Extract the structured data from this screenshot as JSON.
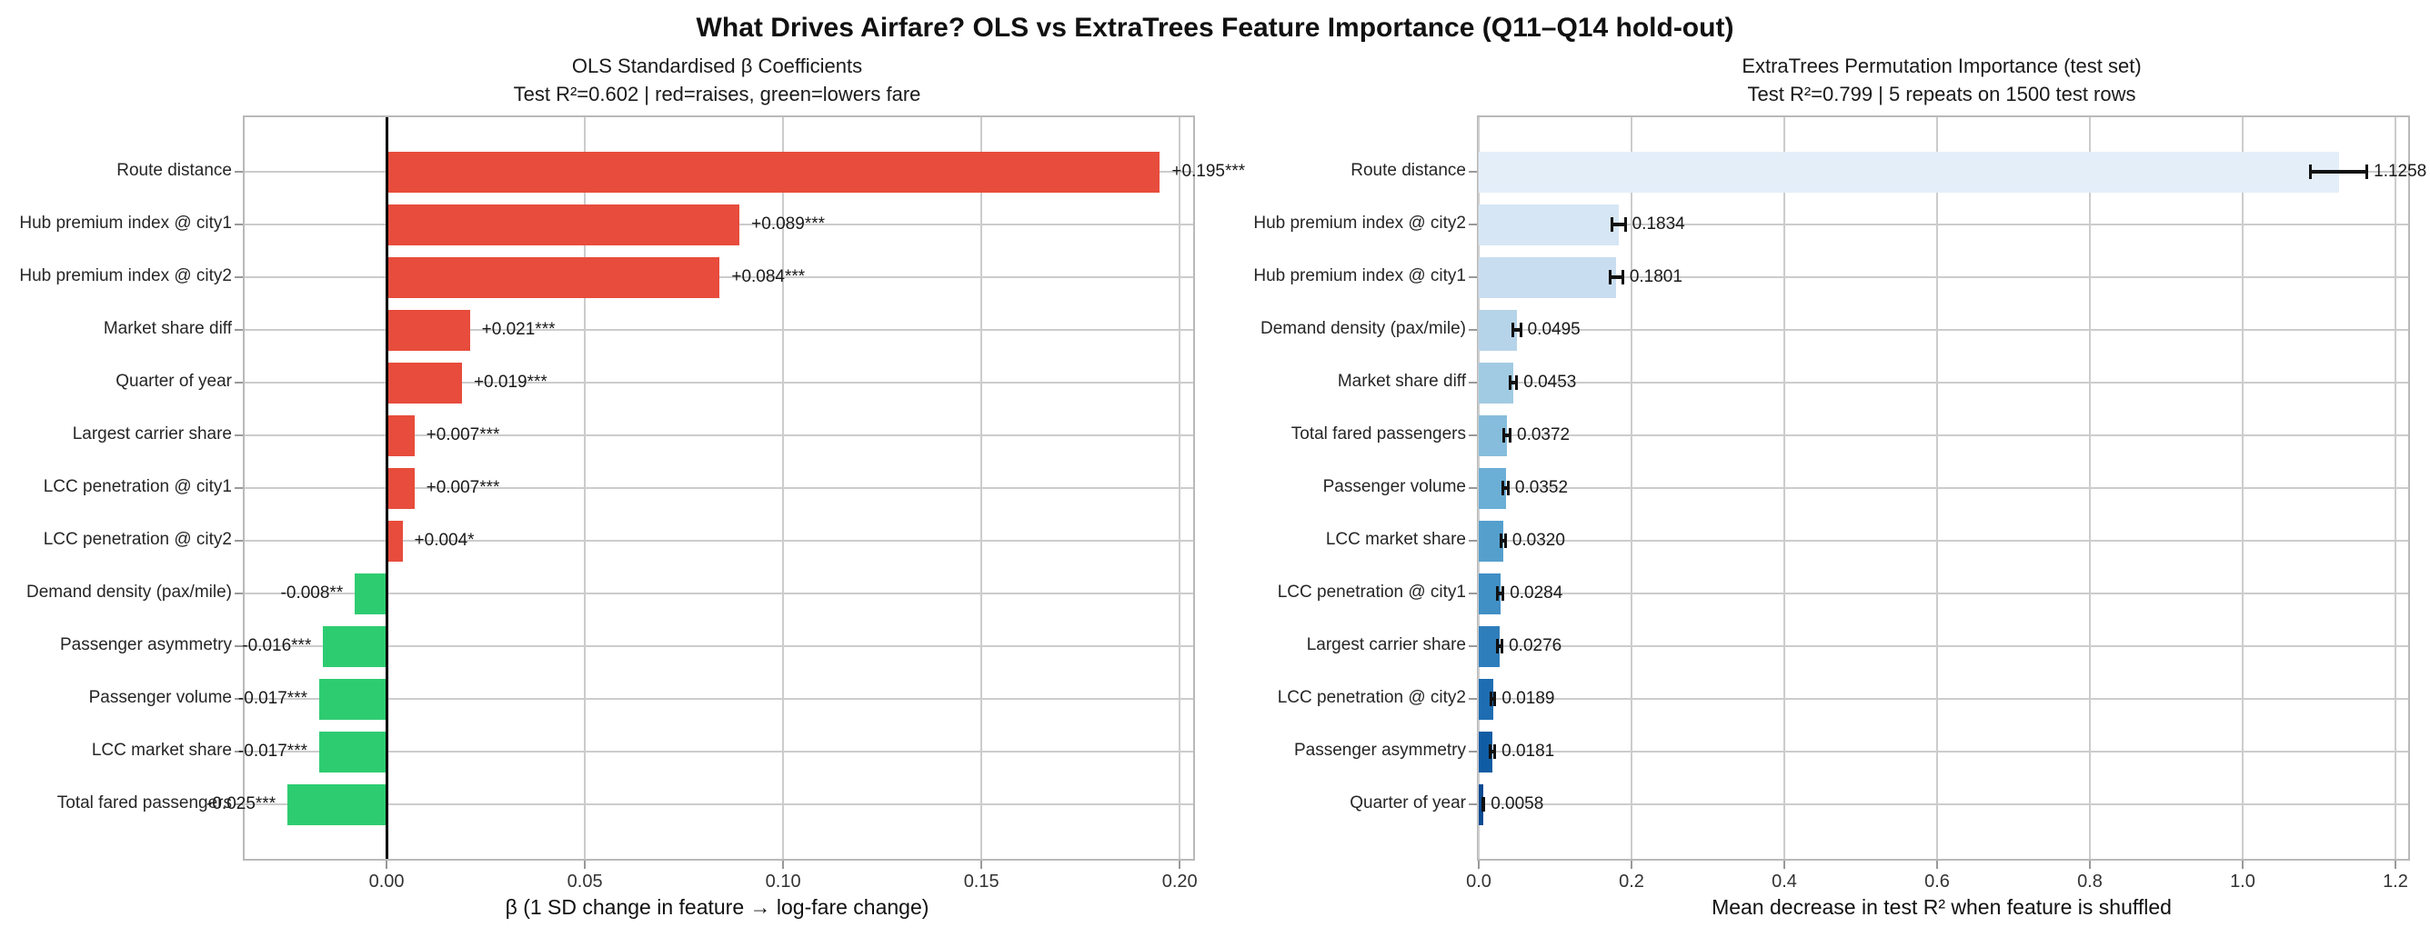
{
  "figure_title": "What Drives Airfare? OLS vs ExtraTrees Feature Importance (Q11–Q14 hold-out)",
  "chart_data": [
    {
      "type": "bar",
      "orientation": "horizontal",
      "panel": "left",
      "title": "OLS Standardised β Coefficients",
      "subtitle": "Test R²=0.602 | red=raises, green=lowers fare",
      "xlabel": "β (1 SD change in feature → log-fare change)",
      "xlim": [
        -0.0358,
        0.2034
      ],
      "xticks": [
        0,
        0.05,
        0.1,
        0.15,
        0.2
      ],
      "xtick_labels": [
        "0.00",
        "0.05",
        "0.10",
        "0.15",
        "0.20"
      ],
      "grid": true,
      "zero_line": true,
      "positive_color": "#e74c3c",
      "negative_color": "#2ecc71",
      "categories": [
        "Route distance",
        "Hub premium index @ city1",
        "Hub premium index @ city2",
        "Market share diff",
        "Quarter of year",
        "Largest carrier share",
        "LCC penetration @ city1",
        "LCC penetration @ city2",
        "Demand density (pax/mile)",
        "Passenger asymmetry",
        "Passenger volume",
        "LCC market share",
        "Total fared passengers"
      ],
      "values": [
        0.195,
        0.089,
        0.084,
        0.021,
        0.019,
        0.007,
        0.007,
        0.004,
        -0.008,
        -0.016,
        -0.017,
        -0.017,
        -0.025
      ],
      "bar_labels": [
        "+0.195***",
        "+0.089***",
        "+0.084***",
        "+0.021***",
        "+0.019***",
        "+0.007***",
        "+0.007***",
        "+0.004*",
        "-0.008**",
        "-0.016***",
        "-0.017***",
        "-0.017***",
        "-0.025***"
      ]
    },
    {
      "type": "bar",
      "orientation": "horizontal",
      "panel": "right",
      "title": "ExtraTrees Permutation Importance (test set)",
      "subtitle": "Test R²=0.799 | 5 repeats on 1500 test rows",
      "xlabel": "Mean decrease in test R² when feature is shuffled",
      "xlim": [
        0,
        1.2167
      ],
      "xticks": [
        0,
        0.2,
        0.4,
        0.6,
        0.8,
        1.0,
        1.2
      ],
      "xtick_labels": [
        "0.0",
        "0.2",
        "0.4",
        "0.6",
        "0.8",
        "1.0",
        "1.2"
      ],
      "grid": true,
      "zero_line": false,
      "categories": [
        "Route distance",
        "Hub premium index @ city2",
        "Hub premium index @ city1",
        "Demand density (pax/mile)",
        "Market share diff",
        "Total fared passengers",
        "Passenger volume",
        "LCC market share",
        "LCC penetration @ city1",
        "Largest carrier share",
        "LCC penetration @ city2",
        "Passenger asymmetry",
        "Quarter of year"
      ],
      "values": [
        1.1258,
        0.1834,
        0.1801,
        0.0495,
        0.0453,
        0.0372,
        0.0352,
        0.032,
        0.0284,
        0.0276,
        0.0189,
        0.0181,
        0.0058
      ],
      "errors": [
        0.0375,
        0.009,
        0.009,
        0.006,
        0.005,
        0.0045,
        0.004,
        0.0035,
        0.004,
        0.0035,
        0.003,
        0.0035,
        0.0016
      ],
      "bar_labels": [
        "1.1258",
        "0.1834",
        "0.1801",
        "0.0495",
        "0.0453",
        "0.0372",
        "0.0352",
        "0.0320",
        "0.0284",
        "0.0276",
        "0.0189",
        "0.0181",
        "0.0058"
      ],
      "bar_colors": [
        "#e3eef9",
        "#d6e6f4",
        "#c9ddf0",
        "#b6d4e9",
        "#a1cbe2",
        "#86bddc",
        "#6baed6",
        "#559fcd",
        "#408fc5",
        "#2e7ebc",
        "#1e6db2",
        "#105ca4",
        "#084a92"
      ]
    }
  ],
  "style_colors": {
    "grid": "#cccccc",
    "spine": "#b9b9b9",
    "error_bar": "#111111",
    "text": "#262626"
  }
}
